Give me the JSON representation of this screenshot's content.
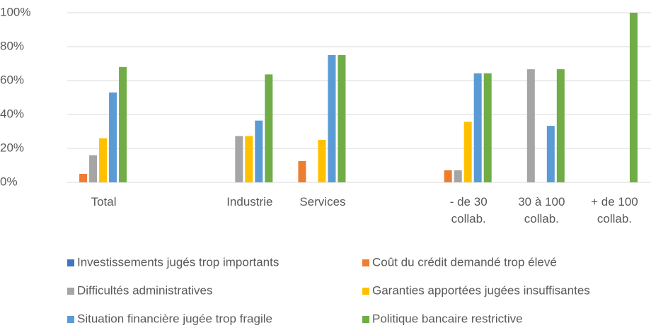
{
  "chart_data": {
    "type": "bar",
    "categories": [
      "Total",
      null,
      "Industrie",
      "Services",
      null,
      "- de 30 collab.",
      "30 à 100 collab.",
      "+ de 100 collab."
    ],
    "series": [
      {
        "name": "Investissements jugés trop importants",
        "color": "#4472c4",
        "values": [
          0,
          null,
          0,
          0,
          null,
          0,
          0,
          0
        ]
      },
      {
        "name": "Coût du crédit demandé trop élevé",
        "color": "#ed7d31",
        "values": [
          5,
          null,
          0,
          12.5,
          null,
          7.1,
          0,
          0
        ]
      },
      {
        "name": "Difficultés administratives",
        "color": "#a5a5a5",
        "values": [
          16,
          null,
          27.3,
          0,
          null,
          7.1,
          66.7,
          0
        ]
      },
      {
        "name": "Garanties apportées jugées insuffisantes",
        "color": "#ffc000",
        "values": [
          26,
          null,
          27.3,
          25,
          null,
          35.7,
          0,
          0
        ]
      },
      {
        "name": "Situation financière jugée trop fragile",
        "color": "#5b9bd5",
        "values": [
          53,
          null,
          36.4,
          75,
          null,
          64.3,
          33.3,
          0
        ]
      },
      {
        "name": "Politique bancaire restrictive",
        "color": "#70ad47",
        "values": [
          68,
          null,
          63.6,
          75,
          null,
          64.3,
          66.7,
          100
        ]
      }
    ],
    "ylim": [
      0,
      100
    ],
    "yticks": [
      {
        "value": 0,
        "label": "0%"
      },
      {
        "value": 20,
        "label": "20%"
      },
      {
        "value": 40,
        "label": "40%"
      },
      {
        "value": 60,
        "label": "60%"
      },
      {
        "value": 80,
        "label": "80%"
      },
      {
        "value": 100,
        "label": "100%"
      }
    ],
    "grid": true,
    "legend": "bottom"
  }
}
